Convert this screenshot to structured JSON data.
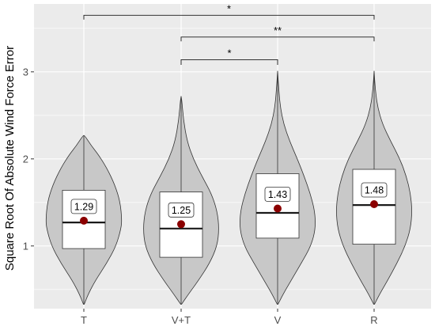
{
  "chart_data": {
    "type": "violin",
    "title": "",
    "xlabel": "",
    "ylabel": "Square Root Of Absolute Wind Force Error",
    "ylim": [
      0.28,
      3.78
    ],
    "y_ticks": [
      1,
      2,
      3
    ],
    "y_tick_labels": [
      "1",
      "2",
      "3"
    ],
    "categories": [
      "T",
      "V+T",
      "V",
      "R"
    ],
    "grid": true,
    "panel_background": "#ebebeb",
    "grid_color": "#ffffff",
    "violin_fill": "#c8c8c8",
    "box_fill": "#ffffff",
    "mean_color": "#8b0000",
    "groups": [
      {
        "category": "T",
        "min": 0.33,
        "max": 2.27,
        "q1": 0.97,
        "median": 1.27,
        "q3": 1.64,
        "mean": 1.29,
        "mean_label": "1.29",
        "density_profile": [
          [
            0.33,
            0.01
          ],
          [
            0.45,
            0.12
          ],
          [
            0.6,
            0.3
          ],
          [
            0.8,
            0.6
          ],
          [
            1.0,
            0.85
          ],
          [
            1.2,
            0.98
          ],
          [
            1.3,
            1.0
          ],
          [
            1.5,
            0.96
          ],
          [
            1.7,
            0.82
          ],
          [
            1.9,
            0.6
          ],
          [
            2.05,
            0.38
          ],
          [
            2.15,
            0.2
          ],
          [
            2.27,
            0.02
          ]
        ]
      },
      {
        "category": "V+T",
        "min": 0.33,
        "max": 2.72,
        "q1": 0.87,
        "median": 1.2,
        "q3": 1.62,
        "mean": 1.25,
        "mean_label": "1.25",
        "density_profile": [
          [
            0.33,
            0.01
          ],
          [
            0.45,
            0.2
          ],
          [
            0.6,
            0.45
          ],
          [
            0.8,
            0.75
          ],
          [
            1.0,
            0.95
          ],
          [
            1.2,
            1.0
          ],
          [
            1.4,
            0.95
          ],
          [
            1.6,
            0.8
          ],
          [
            1.8,
            0.55
          ],
          [
            2.0,
            0.32
          ],
          [
            2.2,
            0.16
          ],
          [
            2.45,
            0.06
          ],
          [
            2.72,
            0.01
          ]
        ]
      },
      {
        "category": "V",
        "min": 0.33,
        "max": 3.01,
        "q1": 1.09,
        "median": 1.38,
        "q3": 1.83,
        "mean": 1.43,
        "mean_label": "1.43",
        "density_profile": [
          [
            0.33,
            0.01
          ],
          [
            0.45,
            0.15
          ],
          [
            0.6,
            0.35
          ],
          [
            0.8,
            0.62
          ],
          [
            1.0,
            0.88
          ],
          [
            1.2,
            1.0
          ],
          [
            1.4,
            0.98
          ],
          [
            1.6,
            0.86
          ],
          [
            1.8,
            0.7
          ],
          [
            2.0,
            0.52
          ],
          [
            2.2,
            0.32
          ],
          [
            2.4,
            0.16
          ],
          [
            2.6,
            0.07
          ],
          [
            2.8,
            0.03
          ],
          [
            3.01,
            0.0
          ]
        ]
      },
      {
        "category": "R",
        "min": 0.33,
        "max": 3.01,
        "q1": 1.02,
        "median": 1.47,
        "q3": 1.88,
        "mean": 1.48,
        "mean_label": "1.48",
        "density_profile": [
          [
            0.33,
            0.01
          ],
          [
            0.45,
            0.15
          ],
          [
            0.6,
            0.35
          ],
          [
            0.8,
            0.6
          ],
          [
            1.0,
            0.82
          ],
          [
            1.2,
            0.96
          ],
          [
            1.4,
            1.0
          ],
          [
            1.6,
            0.96
          ],
          [
            1.8,
            0.85
          ],
          [
            2.0,
            0.68
          ],
          [
            2.2,
            0.44
          ],
          [
            2.4,
            0.22
          ],
          [
            2.6,
            0.09
          ],
          [
            2.8,
            0.03
          ],
          [
            3.01,
            0.0
          ]
        ]
      }
    ],
    "significance": [
      {
        "from": "T",
        "to": "R",
        "label": "*",
        "y": 3.65,
        "drop": 0.05
      },
      {
        "from": "V+T",
        "to": "R",
        "label": "**",
        "y": 3.4,
        "drop": 0.05
      },
      {
        "from": "V+T",
        "to": "V",
        "label": "*",
        "y": 3.14,
        "drop": 0.06
      }
    ]
  }
}
